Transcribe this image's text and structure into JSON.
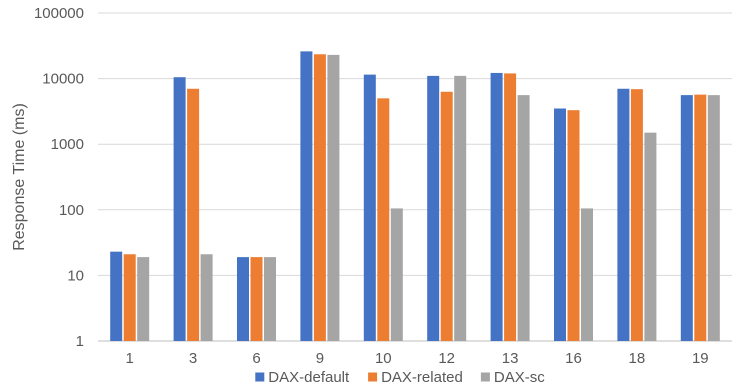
{
  "chart_data": {
    "type": "bar",
    "title": "",
    "xlabel": "",
    "ylabel": "Response Time (ms)",
    "yscale": "log",
    "ylim": [
      1,
      100000
    ],
    "yticks": [
      "1",
      "10",
      "100",
      "1000",
      "10000",
      "100000"
    ],
    "grid": true,
    "legend_position": "bottom",
    "categories": [
      "1",
      "3",
      "6",
      "9",
      "10",
      "12",
      "13",
      "16",
      "18",
      "19"
    ],
    "series": [
      {
        "name": "DAX-default",
        "color": "#4472c4",
        "values": [
          23,
          10500,
          19,
          26000,
          11500,
          11000,
          12200,
          3500,
          7000,
          5600
        ]
      },
      {
        "name": "DAX-related",
        "color": "#ed7d31",
        "values": [
          21,
          7000,
          19,
          23500,
          5000,
          6300,
          12000,
          3300,
          6900,
          5700
        ]
      },
      {
        "name": "DAX-sc",
        "color": "#a5a5a5",
        "values": [
          19,
          21,
          19,
          23000,
          105,
          11000,
          5600,
          105,
          1500,
          5600
        ]
      }
    ]
  }
}
